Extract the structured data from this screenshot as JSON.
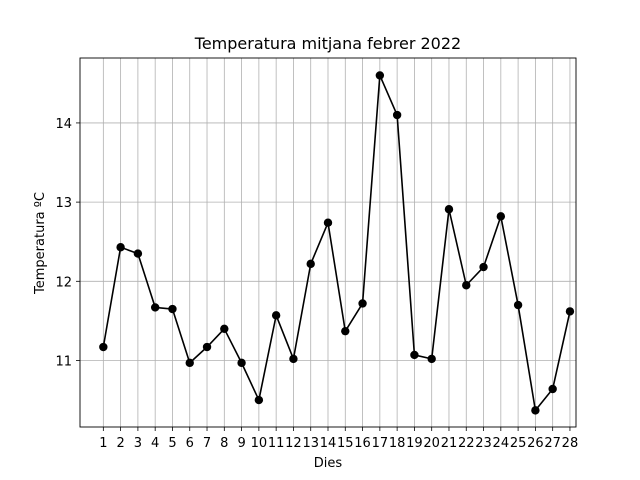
{
  "chart_data": {
    "type": "line",
    "title": "Temperatura mitjana febrer 2022",
    "xlabel": "Dies",
    "ylabel": "Temperatura ºC",
    "x": [
      1,
      2,
      3,
      4,
      5,
      6,
      7,
      8,
      9,
      10,
      11,
      12,
      13,
      14,
      15,
      16,
      17,
      18,
      19,
      20,
      21,
      22,
      23,
      24,
      25,
      26,
      27,
      28
    ],
    "values": [
      11.17,
      12.43,
      12.35,
      11.67,
      11.65,
      10.97,
      11.17,
      11.4,
      10.97,
      10.5,
      11.57,
      11.02,
      12.22,
      12.74,
      11.37,
      11.72,
      14.6,
      14.1,
      11.07,
      11.02,
      12.91,
      11.95,
      12.18,
      12.82,
      11.7,
      10.37,
      10.64,
      11.62
    ],
    "yticks": [
      11,
      12,
      13,
      14
    ],
    "ylim": [
      10.16,
      14.82
    ],
    "xlim": [
      -0.35,
      28.35
    ],
    "grid": true,
    "line_color": "#000000",
    "marker": "circle"
  }
}
